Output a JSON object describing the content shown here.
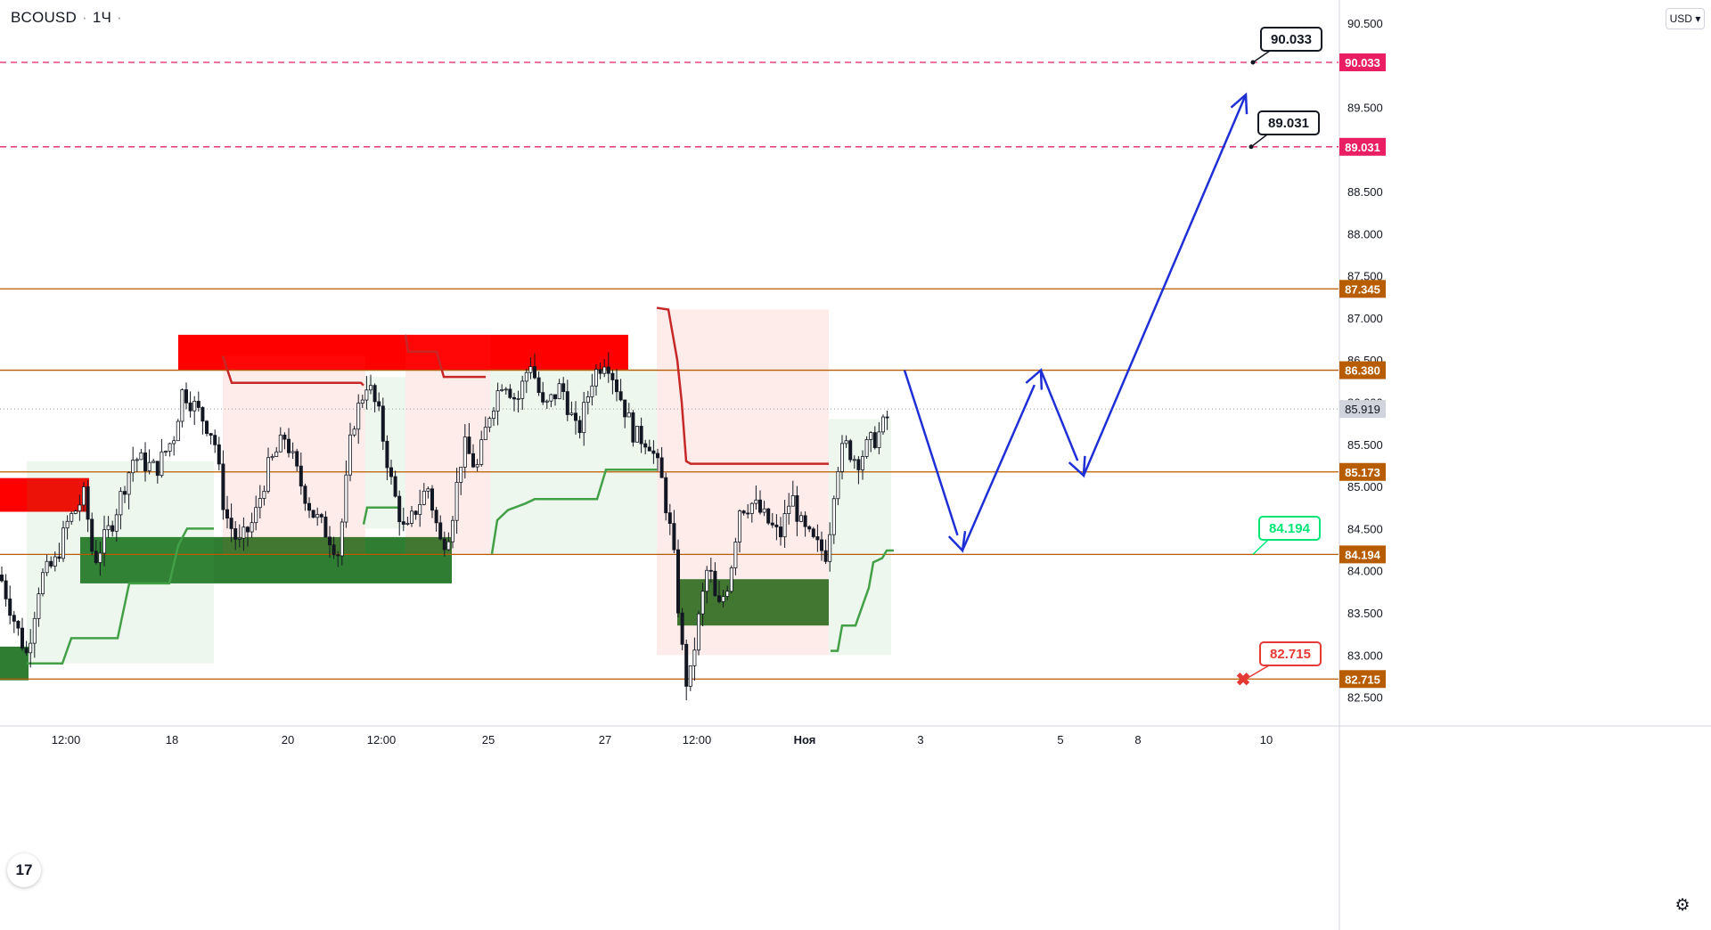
{
  "header": {
    "symbol": "BCOUSD",
    "interval": "1Ч"
  },
  "currency": "USD",
  "logo_text": "17",
  "colors": {
    "up_candle": "#26a69a",
    "candle": "#131722",
    "resistance_zone": "#ff0000",
    "support_zone": "#2e7d32",
    "level_line": "#b85c00",
    "target_line": "#e91e63",
    "forecast": "#1e2fd6",
    "trail_red": "#c62828",
    "trail_green": "#43a047",
    "stop_label": "#e53935",
    "take_label": "#00e676"
  },
  "chart_data": {
    "type": "candlestick",
    "symbol": "BCOUSD",
    "interval": "1Ч",
    "ylim": [
      82.4,
      90.4
    ],
    "y_ticks": [
      "90.500",
      "89.500",
      "88.500",
      "88.000",
      "87.500",
      "87.000",
      "86.500",
      "86.000",
      "85.500",
      "85.000",
      "84.500",
      "84.000",
      "83.500",
      "83.000",
      "82.500"
    ],
    "x_tick_labels": [
      "12:00",
      "18",
      "20",
      "12:00",
      "25",
      "27",
      "12:00",
      "Ноя",
      "3",
      "5",
      "8",
      "10"
    ],
    "current_price": "85.919",
    "levels": [
      {
        "value": 90.033,
        "label": "90.033",
        "style": "dashed",
        "role": "target"
      },
      {
        "value": 89.031,
        "label": "89.031",
        "style": "dashed",
        "role": "target"
      },
      {
        "value": 87.345,
        "label": "87.345",
        "style": "solid",
        "role": "level"
      },
      {
        "value": 86.38,
        "label": "86.380",
        "style": "solid",
        "role": "level"
      },
      {
        "value": 85.173,
        "label": "85.173",
        "style": "solid",
        "role": "level"
      },
      {
        "value": 84.194,
        "label": "84.194",
        "style": "solid",
        "role": "level"
      },
      {
        "value": 82.715,
        "label": "82.715",
        "style": "solid",
        "role": "level"
      }
    ],
    "callouts": [
      {
        "label": "90.033",
        "kind": "target"
      },
      {
        "label": "89.031",
        "kind": "target"
      },
      {
        "label": "84.194",
        "kind": "entry"
      },
      {
        "label": "82.715",
        "kind": "stop"
      }
    ],
    "zones": [
      {
        "kind": "resistance",
        "x0": 0,
        "x1": 100,
        "y0": 84.7,
        "y1": 85.1
      },
      {
        "kind": "resistance",
        "x0": 200,
        "x1": 705,
        "y0": 86.38,
        "y1": 86.8
      },
      {
        "kind": "support",
        "x0": 0,
        "x1": 32,
        "y0": 82.7,
        "y1": 83.1
      },
      {
        "kind": "support",
        "x0": 90,
        "x1": 507,
        "y0": 83.85,
        "y1": 84.4
      },
      {
        "kind": "support",
        "x0": 760,
        "x1": 930,
        "y0": 83.35,
        "y1": 83.9
      }
    ],
    "forecast_path": [
      {
        "x": 1015,
        "y": 86.38
      },
      {
        "x": 1080,
        "y": 84.24
      },
      {
        "x": 1168,
        "y": 86.38
      },
      {
        "x": 1216,
        "y": 85.13
      },
      {
        "x": 1398,
        "y": 89.65
      }
    ],
    "price_path": [
      [
        0,
        83.95
      ],
      [
        18,
        83.35
      ],
      [
        30,
        83.0
      ],
      [
        45,
        83.9
      ],
      [
        62,
        84.1
      ],
      [
        75,
        84.55
      ],
      [
        95,
        84.9
      ],
      [
        105,
        84.1
      ],
      [
        125,
        84.55
      ],
      [
        150,
        85.35
      ],
      [
        175,
        85.2
      ],
      [
        195,
        85.6
      ],
      [
        205,
        86.15
      ],
      [
        225,
        85.85
      ],
      [
        240,
        85.6
      ],
      [
        252,
        84.7
      ],
      [
        268,
        84.3
      ],
      [
        285,
        84.6
      ],
      [
        300,
        85.2
      ],
      [
        320,
        85.6
      ],
      [
        335,
        85.1
      ],
      [
        350,
        84.7
      ],
      [
        370,
        84.4
      ],
      [
        380,
        84.2
      ],
      [
        395,
        85.7
      ],
      [
        412,
        86.25
      ],
      [
        425,
        85.85
      ],
      [
        440,
        85.0
      ],
      [
        455,
        84.4
      ],
      [
        465,
        84.7
      ],
      [
        480,
        85.0
      ],
      [
        495,
        84.3
      ],
      [
        505,
        84.5
      ],
      [
        520,
        85.5
      ],
      [
        535,
        85.2
      ],
      [
        550,
        85.9
      ],
      [
        565,
        86.3
      ],
      [
        580,
        86.0
      ],
      [
        595,
        86.5
      ],
      [
        610,
        85.9
      ],
      [
        630,
        86.2
      ],
      [
        648,
        85.6
      ],
      [
        665,
        86.3
      ],
      [
        680,
        86.55
      ],
      [
        695,
        86.1
      ],
      [
        712,
        85.6
      ],
      [
        728,
        85.55
      ],
      [
        742,
        85.1
      ],
      [
        755,
        84.3
      ],
      [
        765,
        83.1
      ],
      [
        772,
        82.55
      ],
      [
        782,
        83.3
      ],
      [
        795,
        84.1
      ],
      [
        805,
        83.5
      ],
      [
        818,
        83.9
      ],
      [
        830,
        84.75
      ],
      [
        845,
        84.8
      ],
      [
        860,
        84.6
      ],
      [
        875,
        84.4
      ],
      [
        888,
        84.9
      ],
      [
        900,
        84.5
      ],
      [
        915,
        84.3
      ],
      [
        928,
        84.2
      ],
      [
        938,
        85.2
      ],
      [
        948,
        85.5
      ],
      [
        962,
        85.3
      ],
      [
        975,
        85.5
      ],
      [
        985,
        85.6
      ],
      [
        1000,
        85.9
      ]
    ]
  }
}
